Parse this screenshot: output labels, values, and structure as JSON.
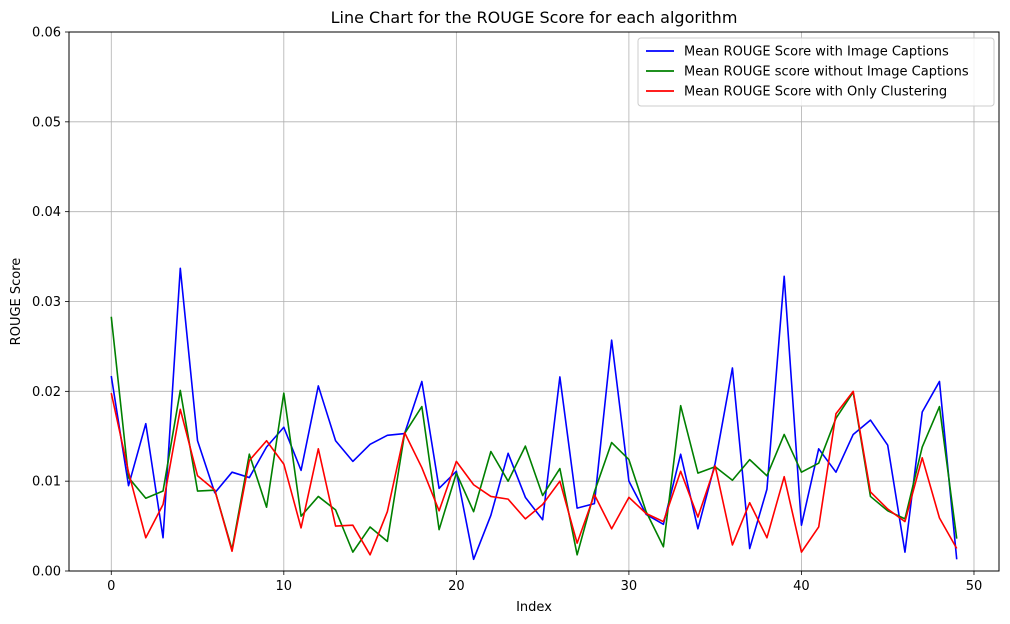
{
  "chart_data": {
    "type": "line",
    "title": "Line Chart for the ROUGE Score for each algorithm",
    "xlabel": "Index",
    "ylabel": "ROUGE Score",
    "xlim": [
      -2.45,
      51.45
    ],
    "ylim": [
      0,
      0.06
    ],
    "xticks": [
      0,
      10,
      20,
      30,
      40,
      50
    ],
    "yticks": [
      0.0,
      0.01,
      0.02,
      0.03,
      0.04,
      0.05,
      0.06
    ],
    "ytick_labels": [
      "0.00",
      "0.01",
      "0.02",
      "0.03",
      "0.04",
      "0.05",
      "0.06"
    ],
    "grid": true,
    "legend_position": "top-right",
    "x": [
      0,
      1,
      2,
      3,
      4,
      5,
      6,
      7,
      8,
      9,
      10,
      11,
      12,
      13,
      14,
      15,
      16,
      17,
      18,
      19,
      20,
      21,
      22,
      23,
      24,
      25,
      26,
      27,
      28,
      29,
      30,
      31,
      32,
      33,
      34,
      35,
      36,
      37,
      38,
      39,
      40,
      41,
      42,
      43,
      44,
      45,
      46,
      47,
      48,
      49
    ],
    "series": [
      {
        "name": "Mean ROUGE Score with Image Captions",
        "color": "#0000ff",
        "values": [
          0.0217,
          0.0095,
          0.0164,
          0.0037,
          0.0337,
          0.0145,
          0.0087,
          0.011,
          0.0104,
          0.0138,
          0.016,
          0.0112,
          0.0206,
          0.0145,
          0.0122,
          0.0141,
          0.0151,
          0.0153,
          0.0211,
          0.0092,
          0.0111,
          0.0013,
          0.0062,
          0.0131,
          0.0082,
          0.0057,
          0.0216,
          0.007,
          0.0075,
          0.0257,
          0.01,
          0.0063,
          0.0052,
          0.013,
          0.0047,
          0.012,
          0.0226,
          0.0025,
          0.0091,
          0.0328,
          0.0051,
          0.0136,
          0.011,
          0.0152,
          0.0168,
          0.014,
          0.0021,
          0.0177,
          0.0211,
          0.0013
        ]
      },
      {
        "name": "Mean ROUGE score without Image Captions",
        "color": "#008000",
        "values": [
          0.0283,
          0.0104,
          0.0081,
          0.0089,
          0.0201,
          0.0089,
          0.009,
          0.0024,
          0.013,
          0.0071,
          0.0198,
          0.0061,
          0.0083,
          0.0068,
          0.0021,
          0.0049,
          0.0033,
          0.0153,
          0.0183,
          0.0046,
          0.0109,
          0.0066,
          0.0133,
          0.01,
          0.0139,
          0.0084,
          0.0114,
          0.0018,
          0.0088,
          0.0143,
          0.0124,
          0.0066,
          0.0027,
          0.0184,
          0.0109,
          0.0116,
          0.0101,
          0.0124,
          0.0106,
          0.0152,
          0.011,
          0.012,
          0.017,
          0.0199,
          0.0083,
          0.0067,
          0.0058,
          0.0138,
          0.0183,
          0.0036
        ]
      },
      {
        "name": "Mean ROUGE Score with Only Clustering",
        "color": "#ff0000",
        "values": [
          0.0198,
          0.011,
          0.0037,
          0.0074,
          0.018,
          0.0106,
          0.009,
          0.0022,
          0.0123,
          0.0145,
          0.0119,
          0.0048,
          0.0136,
          0.005,
          0.0051,
          0.0018,
          0.0066,
          0.0154,
          0.0115,
          0.0067,
          0.0122,
          0.0096,
          0.0083,
          0.008,
          0.0058,
          0.0074,
          0.01,
          0.0031,
          0.0085,
          0.0047,
          0.0082,
          0.0064,
          0.0055,
          0.0111,
          0.006,
          0.0117,
          0.0029,
          0.0076,
          0.0037,
          0.0105,
          0.0021,
          0.0049,
          0.0175,
          0.02,
          0.0088,
          0.0069,
          0.0055,
          0.0126,
          0.0059,
          0.0025
        ]
      }
    ]
  }
}
